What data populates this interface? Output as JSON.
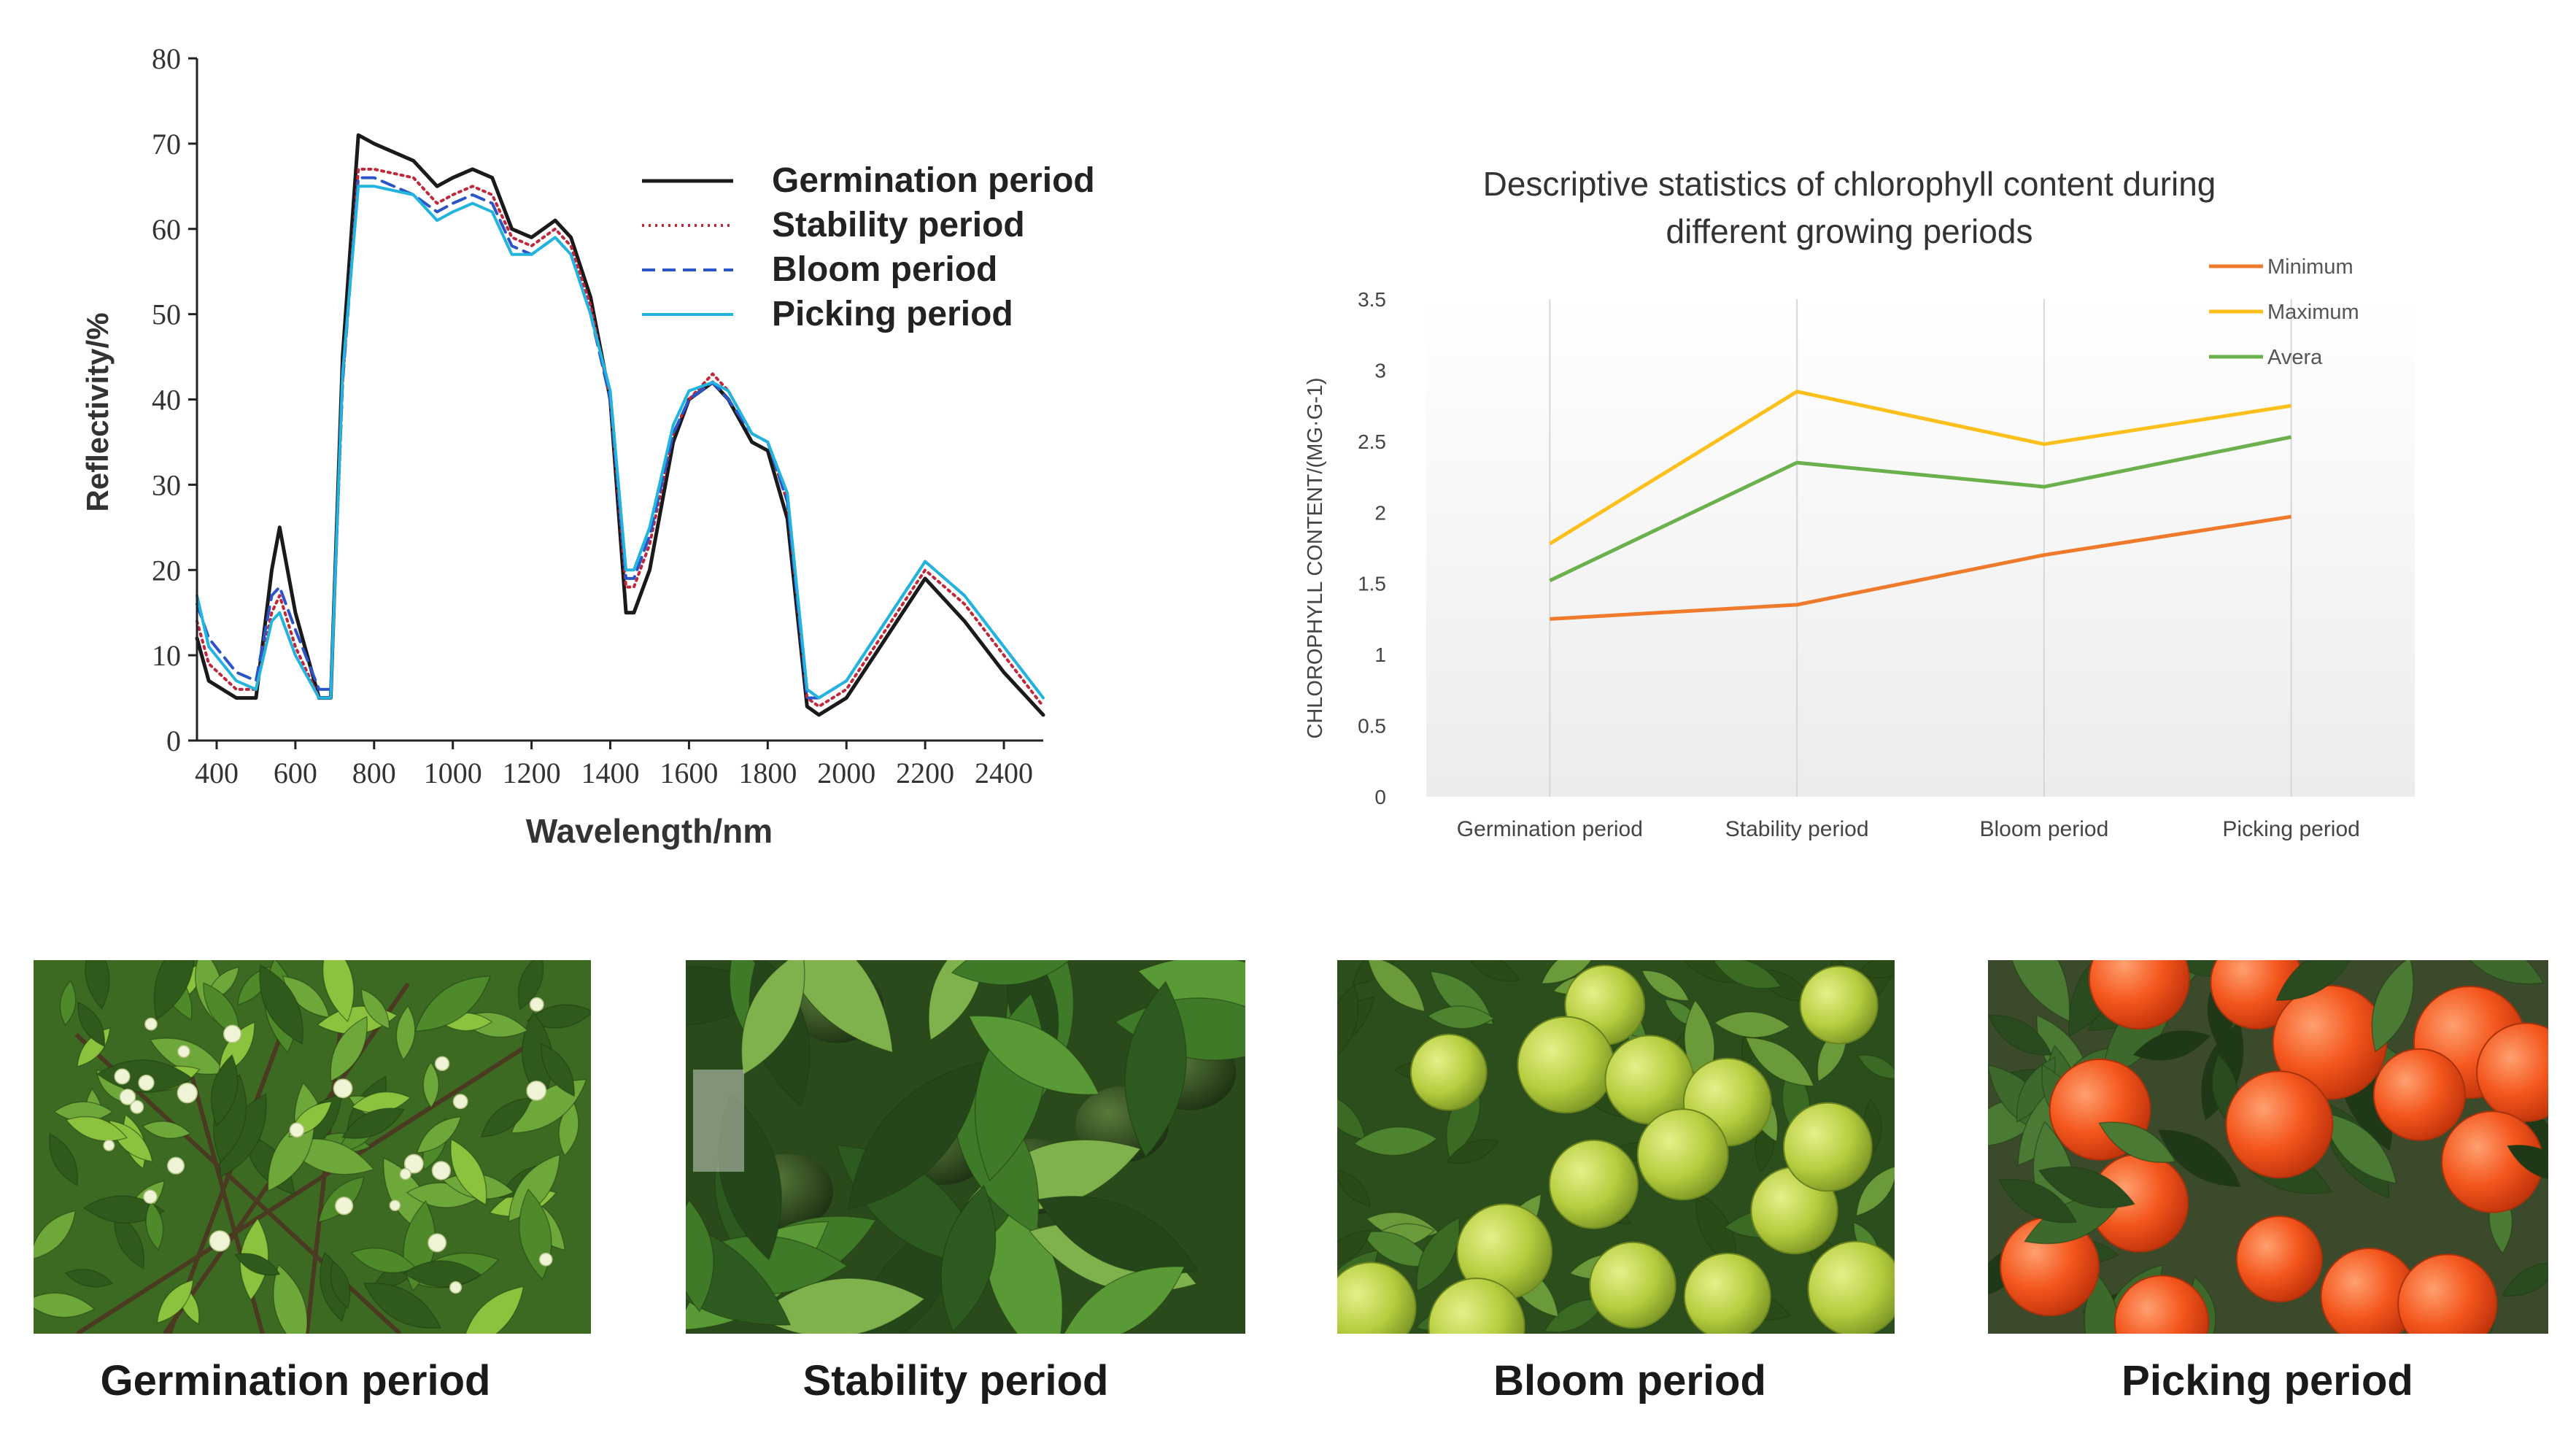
{
  "colors": {
    "germination": "#1a1a1a",
    "stability": "#c0283a",
    "bloom": "#2b55c7",
    "picking": "#22b3de",
    "minimum": "#f07a2c",
    "maximum": "#fcbf1c",
    "average": "#6ab04c",
    "leaf_dark": "#2f5a1c",
    "leaf_light": "#6fa83a",
    "leaf_bright": "#8cc33e",
    "green_fruit": "#a8c83a",
    "orange_fruit": "#f2531c",
    "flower_bud": "#f0f4d6"
  },
  "chart_data": [
    {
      "type": "line",
      "title": "",
      "xlabel": "Wavelength/nm",
      "ylabel": "Reflectivity/%",
      "xlim": [
        350,
        2500
      ],
      "ylim": [
        0,
        80
      ],
      "xticks": [
        400,
        600,
        800,
        1000,
        1200,
        1400,
        1600,
        1800,
        2000,
        2200,
        2400
      ],
      "yticks": [
        0,
        10,
        20,
        30,
        40,
        50,
        60,
        70,
        80
      ],
      "legend": [
        "Germination period",
        "Stability period",
        "Bloom period",
        "Picking period"
      ],
      "legend_position": "upper-right",
      "series": [
        {
          "name": "Germination period",
          "color_key": "germination",
          "style": "solid",
          "x": [
            350,
            380,
            450,
            500,
            540,
            560,
            600,
            660,
            690,
            720,
            760,
            800,
            900,
            960,
            1000,
            1050,
            1100,
            1150,
            1200,
            1260,
            1300,
            1350,
            1400,
            1440,
            1460,
            1500,
            1560,
            1600,
            1660,
            1700,
            1760,
            1800,
            1850,
            1900,
            1930,
            2000,
            2100,
            2200,
            2300,
            2400,
            2500
          ],
          "y": [
            12,
            7,
            5,
            5,
            20,
            25,
            15,
            5,
            5,
            45,
            71,
            70,
            68,
            65,
            66,
            67,
            66,
            60,
            59,
            61,
            59,
            52,
            40,
            15,
            15,
            20,
            35,
            40,
            42,
            40,
            35,
            34,
            26,
            4,
            3,
            5,
            12,
            19,
            14,
            8,
            3
          ]
        },
        {
          "name": "Stability period",
          "color_key": "stability",
          "style": "dotted",
          "x": [
            350,
            380,
            450,
            500,
            540,
            560,
            600,
            660,
            690,
            720,
            760,
            800,
            900,
            960,
            1000,
            1050,
            1100,
            1150,
            1200,
            1260,
            1300,
            1350,
            1400,
            1440,
            1460,
            1500,
            1560,
            1600,
            1660,
            1700,
            1760,
            1800,
            1850,
            1900,
            1930,
            2000,
            2100,
            2200,
            2300,
            2400,
            2500
          ],
          "y": [
            14,
            9,
            6,
            6,
            15,
            17,
            11,
            5,
            5,
            42,
            67,
            67,
            66,
            63,
            64,
            65,
            64,
            59,
            58,
            60,
            58,
            51,
            40,
            18,
            18,
            23,
            36,
            40,
            43,
            41,
            36,
            35,
            28,
            5,
            4,
            6,
            13,
            20,
            16,
            10,
            4
          ]
        },
        {
          "name": "Bloom period",
          "color_key": "bloom",
          "style": "dashed",
          "x": [
            350,
            380,
            450,
            500,
            540,
            560,
            600,
            660,
            690,
            720,
            760,
            800,
            900,
            960,
            1000,
            1050,
            1100,
            1150,
            1200,
            1260,
            1300,
            1350,
            1400,
            1440,
            1460,
            1500,
            1560,
            1600,
            1660,
            1700,
            1760,
            1800,
            1850,
            1900,
            1930,
            2000,
            2100,
            2200,
            2300,
            2400,
            2500
          ],
          "y": [
            16,
            12,
            8,
            7,
            17,
            18,
            13,
            6,
            6,
            42,
            66,
            66,
            64,
            62,
            63,
            64,
            63,
            58,
            57,
            59,
            57,
            50,
            40,
            19,
            19,
            24,
            36,
            40,
            42,
            40,
            36,
            35,
            28,
            5,
            5,
            7,
            14,
            21,
            17,
            11,
            5
          ]
        },
        {
          "name": "Picking period",
          "color_key": "picking",
          "style": "solid",
          "x": [
            350,
            380,
            450,
            500,
            540,
            560,
            600,
            660,
            690,
            720,
            760,
            800,
            900,
            960,
            1000,
            1050,
            1100,
            1150,
            1200,
            1260,
            1300,
            1350,
            1400,
            1440,
            1460,
            1500,
            1560,
            1600,
            1660,
            1700,
            1760,
            1800,
            1850,
            1900,
            1930,
            2000,
            2100,
            2200,
            2300,
            2400,
            2500
          ],
          "y": [
            17,
            11,
            7,
            6,
            14,
            15,
            10,
            5,
            5,
            43,
            65,
            65,
            64,
            61,
            62,
            63,
            62,
            57,
            57,
            59,
            57,
            50,
            41,
            20,
            20,
            25,
            37,
            41,
            42,
            41,
            36,
            35,
            29,
            6,
            5,
            7,
            14,
            21,
            17,
            11,
            5
          ]
        }
      ]
    },
    {
      "type": "line",
      "title": "Descriptive statistics of chlorophyll content during different growing periods",
      "title_lines": [
        "Descriptive statistics of chlorophyll content during",
        "different growing periods"
      ],
      "xlabel": "",
      "ylabel": "CHLOROPHYLL CONTENT/(MG·G-1)",
      "categories": [
        "Germination period",
        "Stability period",
        "Bloom period",
        "Picking period"
      ],
      "ylim": [
        0,
        3.5
      ],
      "yticks": [
        "0",
        "0.5",
        "1",
        "1.5",
        "2",
        "2.5",
        "3",
        "3.5"
      ],
      "legend_position": "top-right",
      "series": [
        {
          "name": "Minimum",
          "color_key": "minimum",
          "values": [
            1.25,
            1.35,
            1.7,
            1.97
          ]
        },
        {
          "name": "Maximum",
          "color_key": "maximum",
          "values": [
            1.78,
            2.85,
            2.48,
            2.75
          ]
        },
        {
          "name": "Avera",
          "color_key": "average",
          "values": [
            1.52,
            2.35,
            2.18,
            2.53
          ]
        }
      ]
    }
  ],
  "photos": [
    {
      "caption": "Germination period",
      "scene": "germination"
    },
    {
      "caption": "Stability period",
      "scene": "stability"
    },
    {
      "caption": "Bloom period",
      "scene": "bloom"
    },
    {
      "caption": "Picking period",
      "scene": "picking"
    }
  ]
}
